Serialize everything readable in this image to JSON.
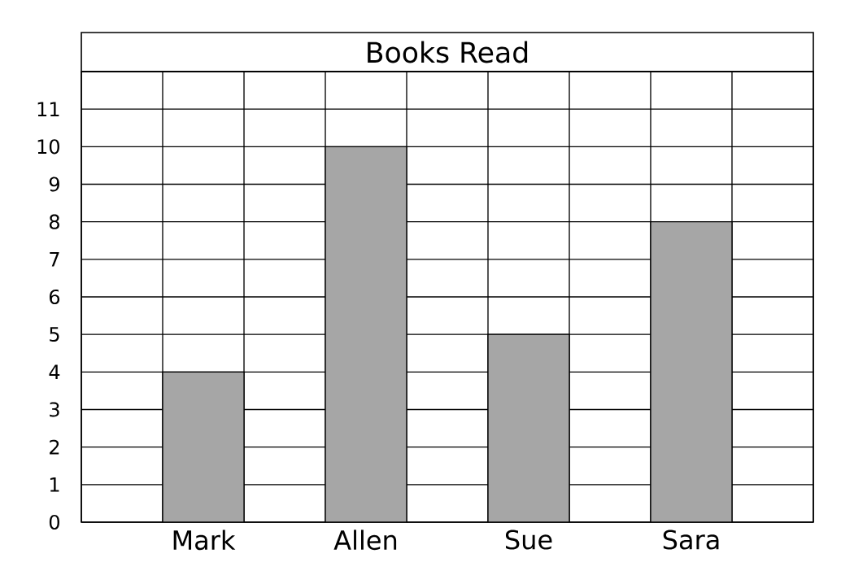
{
  "chart_data": {
    "type": "bar",
    "title": "Books Read",
    "categories": [
      "Mark",
      "Allen",
      "Sue",
      "Sara"
    ],
    "values": [
      4,
      10,
      5,
      8
    ],
    "color": "#a6a6a6",
    "ylim": [
      0,
      12
    ],
    "yticks": [
      0,
      1,
      2,
      3,
      4,
      5,
      6,
      7,
      8,
      9,
      10,
      11,
      {
        "value": 12,
        "label": null
      }
    ],
    "grid": true
  }
}
